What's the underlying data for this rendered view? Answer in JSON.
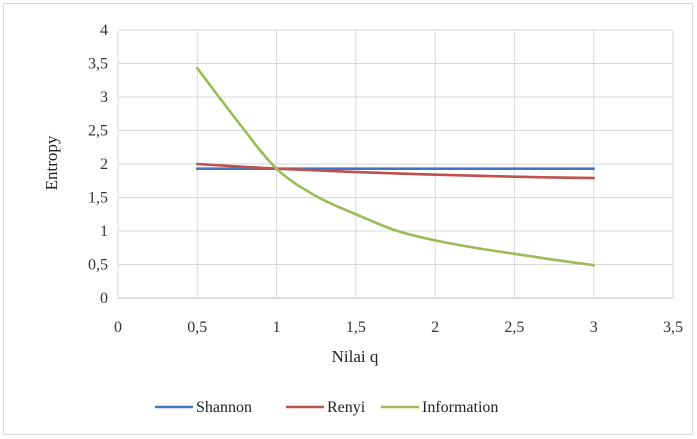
{
  "chart_data": {
    "type": "line",
    "title": "",
    "xlabel": "Nilai  q",
    "ylabel": "Entropy",
    "xlim": [
      0,
      3.5
    ],
    "ylim": [
      0,
      4
    ],
    "xticks": [
      "0",
      "0,5",
      "1",
      "1,5",
      "2",
      "2,5",
      "3",
      "3,5"
    ],
    "yticks": [
      "0",
      "0,5",
      "1",
      "1,5",
      "2",
      "2,5",
      "3",
      "3,5",
      "4"
    ],
    "grid": true,
    "legend_position": "bottom",
    "series": [
      {
        "name": "Shannon",
        "color": "#4472c4",
        "x": [
          0.5,
          1,
          1.5,
          2,
          2.5,
          3
        ],
        "y": [
          1.93,
          1.93,
          1.93,
          1.93,
          1.93,
          1.93
        ]
      },
      {
        "name": "Renyi",
        "color": "#c0504d",
        "x": [
          0.5,
          1,
          1.5,
          2,
          2.5,
          3
        ],
        "y": [
          2.0,
          1.93,
          1.88,
          1.84,
          1.81,
          1.79
        ]
      },
      {
        "name": "Information",
        "color": "#9bbb59",
        "x": [
          0.5,
          0.75,
          1,
          1.25,
          1.5,
          1.75,
          2,
          2.25,
          2.5,
          2.75,
          3
        ],
        "y": [
          3.43,
          2.65,
          1.93,
          1.52,
          1.25,
          1.01,
          0.86,
          0.75,
          0.66,
          0.57,
          0.49
        ]
      }
    ]
  }
}
